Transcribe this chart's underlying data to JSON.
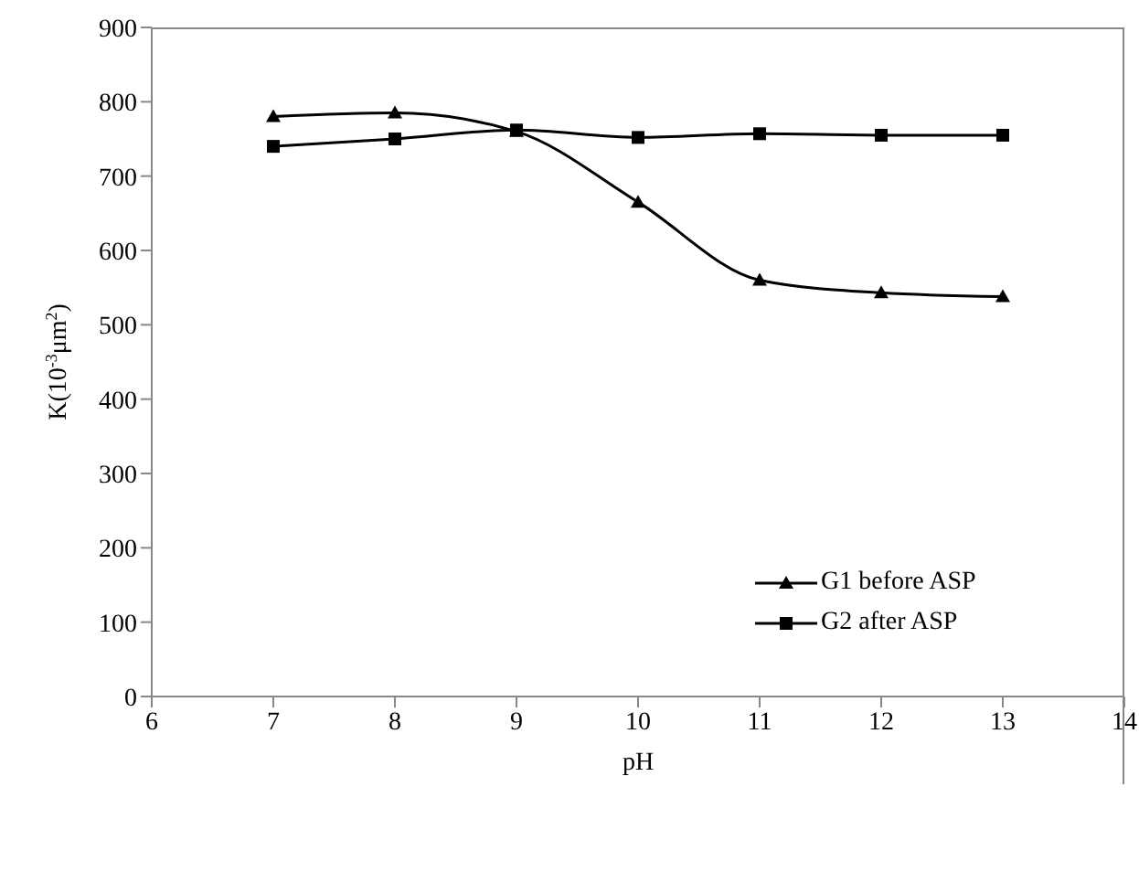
{
  "chart_data": {
    "type": "line",
    "xlabel": "pH",
    "ylabel": "K(10$^{-3}$μm$^{2}$)",
    "x": [
      7,
      8,
      9,
      10,
      11,
      12,
      13
    ],
    "series": [
      {
        "name": "G1 before ASP",
        "color": "#000000",
        "marker": "triangle",
        "values": [
          780,
          785,
          760,
          665,
          560,
          543,
          538
        ]
      },
      {
        "name": "G2 after ASP",
        "color": "#000000",
        "marker": "square",
        "values": [
          740,
          750,
          762,
          752,
          757,
          755,
          755
        ]
      }
    ],
    "xlim": [
      6,
      14
    ],
    "xticks": [
      6,
      7,
      8,
      9,
      10,
      11,
      12,
      13,
      14
    ],
    "ylim": [
      0,
      900
    ],
    "yticks": [
      0,
      100,
      200,
      300,
      400,
      500,
      600,
      700,
      800,
      900
    ],
    "legend": "right",
    "line_style": "solid"
  }
}
